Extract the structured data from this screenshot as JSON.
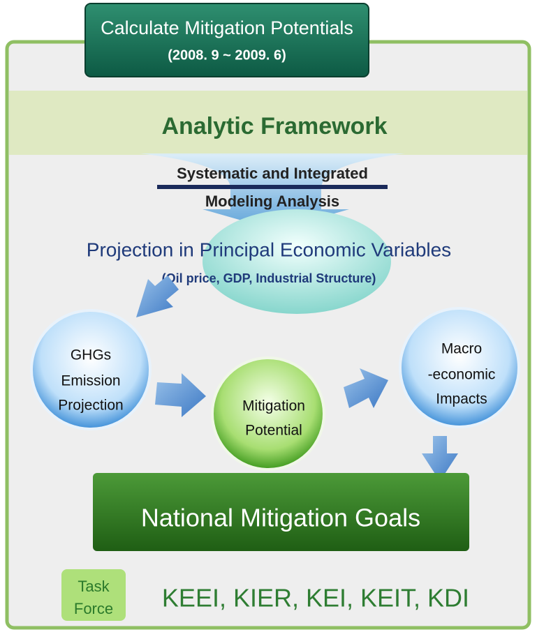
{
  "header": {
    "title": "Calculate Mitigation Potentials",
    "period": "(2008. 9 ~ 2009. 6)"
  },
  "framework": {
    "title": "Analytic Framework",
    "method": [
      "Systematic and Integrated",
      "Modeling Analysis"
    ]
  },
  "projection": {
    "title": "Projection in Principal Economic Variables",
    "subtitle": "(Oil price, GDP, Industrial Structure)"
  },
  "nodes": [
    {
      "label": [
        "GHGs",
        "Emission",
        "Projection"
      ]
    },
    {
      "label": [
        "Mitigation",
        "Potential"
      ]
    },
    {
      "label": [
        "Macro",
        "-economic",
        "Impacts"
      ]
    }
  ],
  "goal": "National Mitigation Goals",
  "task_force": {
    "label": [
      "Task",
      "Force"
    ],
    "members": "KEEI, KIER, KEI, KEIT, KDI"
  }
}
